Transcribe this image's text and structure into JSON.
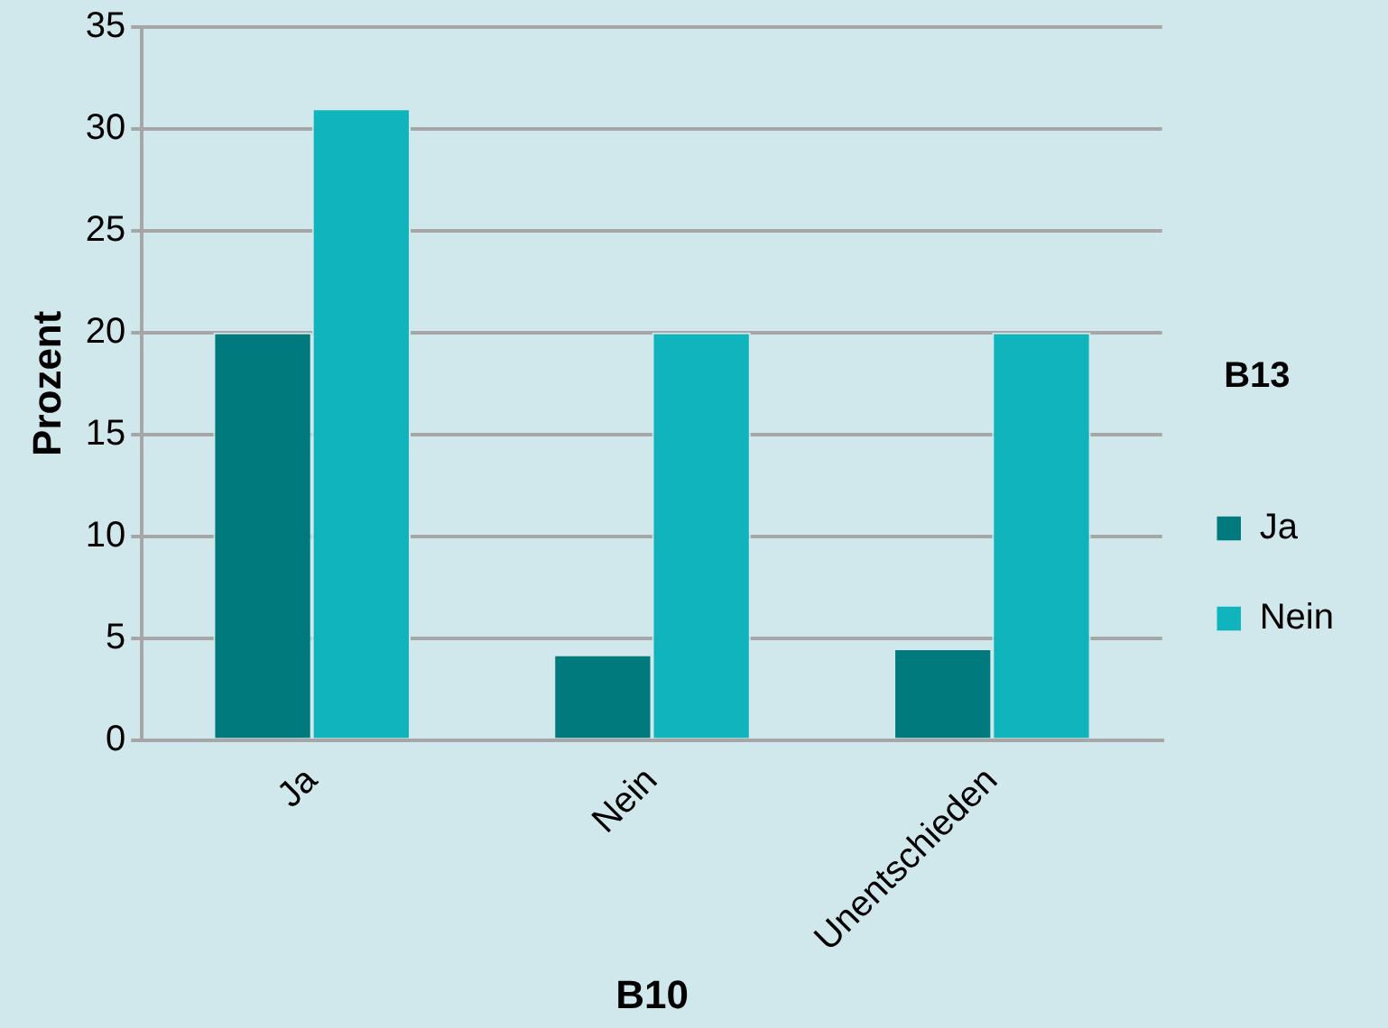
{
  "chart_data": {
    "type": "bar",
    "categories": [
      "Ja",
      "Nein",
      "Unentschieden"
    ],
    "series": [
      {
        "name": "Ja",
        "color": "#007a7c",
        "values": [
          20,
          4.2,
          4.5
        ]
      },
      {
        "name": "Nein",
        "color": "#10b4bd",
        "values": [
          31,
          20,
          20
        ]
      }
    ],
    "xlabel": "B10",
    "ylabel": "Prozent",
    "legend_title": "B13",
    "legend": "right",
    "ylim": [
      0,
      35
    ],
    "yticks": [
      0,
      5,
      10,
      15,
      20,
      25,
      30,
      35
    ],
    "grid": "y"
  }
}
